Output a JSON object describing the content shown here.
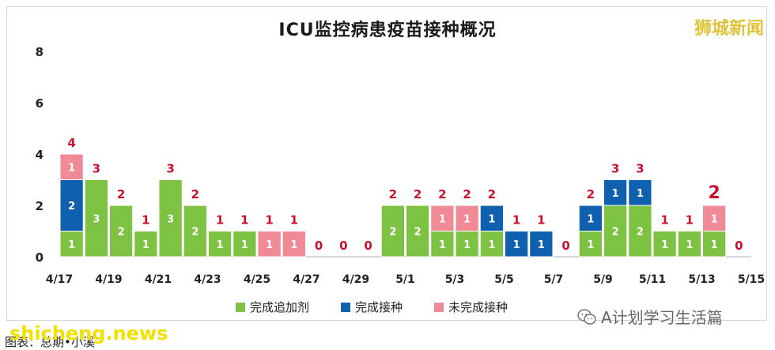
{
  "title": "ICU监控病患疫苗接种概况",
  "brand": "狮城新闻",
  "watermark": "shicheng.news",
  "wechat_label": "A计划学习生活篇",
  "source_label": "图表：总期•小溪",
  "colors": {
    "boosted": "#7dc242",
    "completed": "#1060b0",
    "incomplete": "#f08a96",
    "total_label": "#c8102e"
  },
  "chart_data": {
    "type": "bar",
    "stacked": true,
    "title": "ICU监控病患疫苗接种概况",
    "categories": [
      "4/17",
      "4/18",
      "4/19",
      "4/20",
      "4/21",
      "4/22",
      "4/23",
      "4/24",
      "4/25",
      "4/26",
      "4/27",
      "4/28",
      "4/29",
      "4/30",
      "5/1",
      "5/2",
      "5/3",
      "5/4",
      "5/5",
      "5/6",
      "5/7",
      "5/8",
      "5/9",
      "5/10",
      "5/11",
      "5/12",
      "5/13",
      "5/14"
    ],
    "x_tick_labels": [
      "4/17",
      "4/19",
      "4/21",
      "4/23",
      "4/25",
      "4/27",
      "4/29",
      "5/1",
      "5/3",
      "5/5",
      "5/7",
      "5/9",
      "5/11",
      "5/13",
      "5/15"
    ],
    "y_ticks": [
      "0",
      "2",
      "4",
      "6",
      "8"
    ],
    "ylim": [
      0,
      8
    ],
    "series": [
      {
        "name": "完成追加剂",
        "values": [
          1,
          3,
          2,
          1,
          3,
          2,
          1,
          1,
          0,
          0,
          0,
          0,
          0,
          2,
          2,
          1,
          1,
          1,
          0,
          0,
          0,
          1,
          2,
          2,
          1,
          1,
          1,
          0
        ]
      },
      {
        "name": "完成接种",
        "values": [
          2,
          0,
          0,
          0,
          0,
          0,
          0,
          0,
          0,
          0,
          0,
          0,
          0,
          0,
          0,
          0,
          0,
          1,
          1,
          1,
          0,
          1,
          1,
          1,
          0,
          0,
          0,
          0
        ]
      },
      {
        "name": "未完成接种",
        "values": [
          1,
          0,
          0,
          0,
          0,
          0,
          0,
          0,
          1,
          1,
          0,
          0,
          0,
          0,
          0,
          1,
          1,
          0,
          0,
          0,
          0,
          0,
          0,
          0,
          0,
          0,
          1,
          0
        ]
      }
    ],
    "totals": [
      4,
      3,
      2,
      1,
      3,
      2,
      1,
      1,
      1,
      1,
      0,
      0,
      0,
      2,
      2,
      2,
      2,
      2,
      1,
      1,
      0,
      2,
      3,
      3,
      1,
      1,
      2,
      0
    ],
    "legend_position": "bottom",
    "grid": false
  }
}
